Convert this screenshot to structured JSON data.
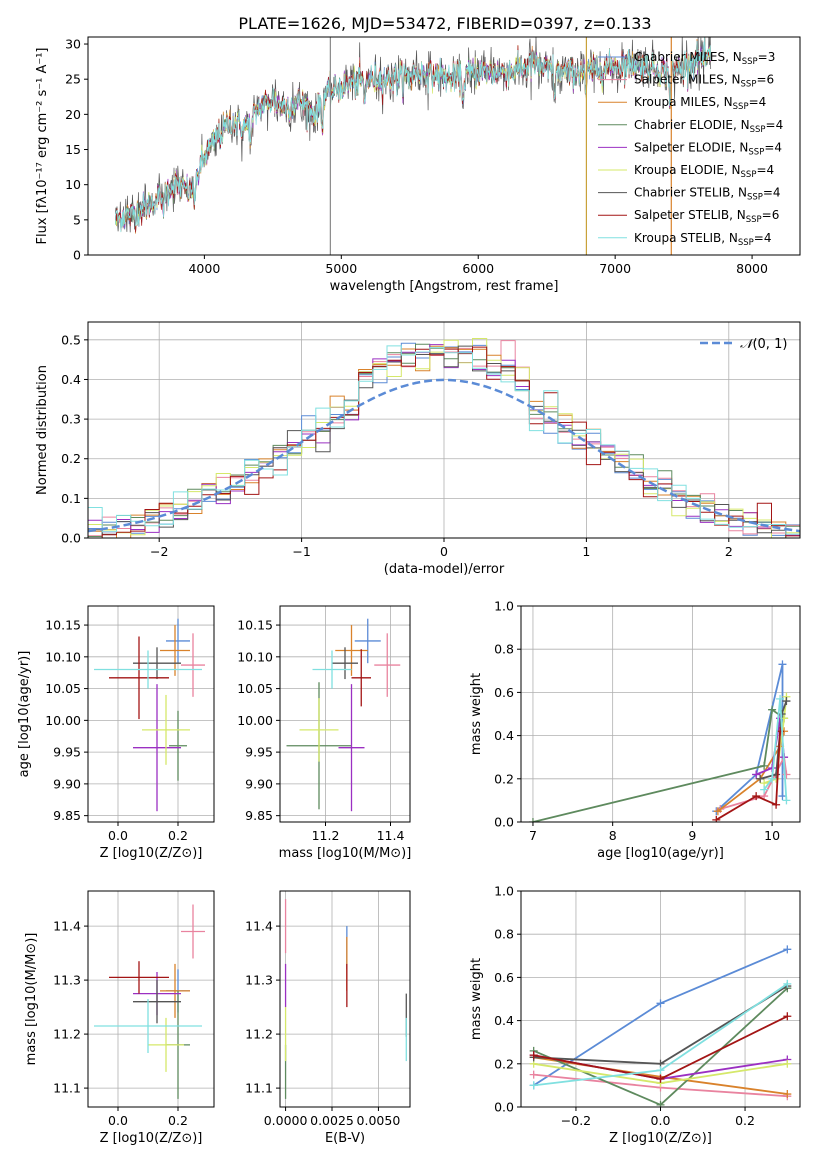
{
  "figure_title": "PLATE=1626, MJD=53472, FIBERID=0397, z=0.133",
  "legend_series": [
    {
      "label": "Chabrier MILES, N",
      "sub": "SSP",
      "tail": "=3",
      "color": "#5b8bd6"
    },
    {
      "label": "Salpeter MILES, N",
      "sub": "SSP",
      "tail": "=6",
      "color": "#e9839f"
    },
    {
      "label": "Kroupa MILES, N",
      "sub": "SSP",
      "tail": "=4",
      "color": "#d9822b"
    },
    {
      "label": "Chabrier ELODIE, N",
      "sub": "SSP",
      "tail": "=4",
      "color": "#5e8a5e"
    },
    {
      "label": "Salpeter ELODIE, N",
      "sub": "SSP",
      "tail": "=4",
      "color": "#9b30c2"
    },
    {
      "label": "Kroupa ELODIE, N",
      "sub": "SSP",
      "tail": "=4",
      "color": "#d5e86a"
    },
    {
      "label": "Chabrier STELIB, N",
      "sub": "SSP",
      "tail": "=4",
      "color": "#555555"
    },
    {
      "label": "Salpeter STELIB, N",
      "sub": "SSP",
      "tail": "=6",
      "color": "#a31515"
    },
    {
      "label": "Kroupa STELIB, N",
      "sub": "SSP",
      "tail": "=4",
      "color": "#80e0e0"
    }
  ],
  "chart_data": [
    {
      "type": "line",
      "id": "spectrum",
      "xlabel": "wavelength [Angstrom, rest frame]",
      "ylabel": "Flux [fλ10⁻¹⁷ erg cm⁻² s⁻¹ A⁻¹]",
      "xlim": [
        3150,
        8350
      ],
      "ylim": [
        0,
        31
      ],
      "xticks": [
        4000,
        5000,
        6000,
        7000,
        8000
      ],
      "yticks": [
        0,
        5,
        10,
        15,
        20,
        25,
        30
      ],
      "envelope_x": [
        3350,
        3400,
        3500,
        3600,
        3700,
        3800,
        3900,
        4000,
        4100,
        4200,
        4300,
        4400,
        4500,
        4600,
        4700,
        4800,
        4900,
        5000,
        5200,
        5400,
        5600,
        5800,
        6000,
        6200,
        6400,
        6600,
        6800,
        7000,
        7200,
        7400,
        7600,
        7700
      ],
      "envelope_y": [
        5,
        5.5,
        6,
        7,
        9,
        10,
        9,
        14,
        17,
        19,
        18,
        21,
        22,
        21,
        22,
        20,
        23,
        24,
        25,
        25,
        26,
        25,
        26,
        26,
        27,
        26,
        26,
        27,
        27,
        26,
        28,
        28
      ],
      "dips": [
        3700,
        3930,
        4340,
        4860,
        5170,
        5890,
        6560,
        6785,
        7400
      ],
      "vertical_lines_x": [
        4920,
        6790,
        7410
      ]
    },
    {
      "type": "step",
      "id": "residuals",
      "xlabel": "(data-model)/error",
      "ylabel": "Normed distribution",
      "xlim": [
        -2.5,
        2.5
      ],
      "ylim": [
        0,
        0.545
      ],
      "xticks": [
        -2,
        -1,
        0,
        1,
        2
      ],
      "yticks": [
        0.0,
        0.1,
        0.2,
        0.3,
        0.4,
        0.5
      ],
      "grid": true,
      "reference_curve": "N(0,1)",
      "legend_position": "upper right",
      "bin_width": 0.1
    },
    {
      "type": "scatter",
      "id": "age_vs_Z",
      "xlabel": "Z [log10(Z/Z⊙)]",
      "ylabel": "age  [log10(age/yr)]",
      "xlim": [
        -0.1,
        0.32
      ],
      "ylim": [
        9.84,
        10.18
      ],
      "xticks": [
        0.0,
        0.2
      ],
      "yticks": [
        9.85,
        9.9,
        9.95,
        10.0,
        10.05,
        10.1,
        10.15
      ],
      "points": [
        {
          "x": 0.2,
          "y": 10.125,
          "xerr": 0.04,
          "yerr": 0.035
        },
        {
          "x": 0.25,
          "y": 10.087,
          "xerr": 0.04,
          "yerr": 0.05
        },
        {
          "x": 0.19,
          "y": 10.11,
          "xerr": 0.05,
          "yerr": 0.04
        },
        {
          "x": 0.2,
          "y": 9.96,
          "xerr": 0.03,
          "yerr": 0.055
        },
        {
          "x": 0.13,
          "y": 9.957,
          "xerr": 0.08,
          "yerr": 0.1
        },
        {
          "x": 0.16,
          "y": 9.985,
          "xerr": 0.08,
          "yerr": 0.055
        },
        {
          "x": 0.13,
          "y": 10.09,
          "xerr": 0.08,
          "yerr": 0.025
        },
        {
          "x": 0.07,
          "y": 10.067,
          "xerr": 0.1,
          "yerr": 0.065
        },
        {
          "x": 0.1,
          "y": 10.08,
          "xerr": 0.18,
          "yerr": 0.03
        }
      ]
    },
    {
      "type": "scatter",
      "id": "age_vs_mass",
      "xlabel": "mass [log10(M/M⊙)]",
      "ylabel": "",
      "xlim": [
        11.06,
        11.46
      ],
      "ylim": [
        9.84,
        10.18
      ],
      "xticks": [
        11.2,
        11.4
      ],
      "yticks": [
        9.85,
        9.9,
        9.95,
        10.0,
        10.05,
        10.1,
        10.15
      ],
      "points": [
        {
          "x": 11.33,
          "y": 10.125,
          "xerr": 0.04,
          "yerr": 0.035
        },
        {
          "x": 11.39,
          "y": 10.087,
          "xerr": 0.04,
          "yerr": 0.05
        },
        {
          "x": 11.28,
          "y": 10.11,
          "xerr": 0.05,
          "yerr": 0.04
        },
        {
          "x": 11.18,
          "y": 9.96,
          "xerr": 0.1,
          "yerr": 0.1
        },
        {
          "x": 11.28,
          "y": 9.957,
          "xerr": 0.04,
          "yerr": 0.1
        },
        {
          "x": 11.18,
          "y": 9.985,
          "xerr": 0.06,
          "yerr": 0.05
        },
        {
          "x": 11.26,
          "y": 10.09,
          "xerr": 0.04,
          "yerr": 0.025
        },
        {
          "x": 11.31,
          "y": 10.067,
          "xerr": 0.03,
          "yerr": 0.045
        },
        {
          "x": 11.22,
          "y": 10.08,
          "xerr": 0.06,
          "yerr": 0.03
        }
      ]
    },
    {
      "type": "line",
      "id": "massweight_vs_age",
      "xlabel": "age  [log10(age/yr)]",
      "ylabel": "mass weight",
      "xlim": [
        6.85,
        10.35
      ],
      "ylim": [
        0,
        1
      ],
      "xticks": [
        7,
        8,
        9,
        10
      ],
      "yticks": [
        0.0,
        0.2,
        0.4,
        0.6,
        0.8,
        1.0
      ],
      "series": [
        {
          "x": [
            9.3,
            9.8,
            10.13,
            10.13
          ],
          "y": [
            0.05,
            0.22,
            0.73,
            0.12
          ]
        },
        {
          "x": [
            9.35,
            9.9,
            10.15,
            10.18
          ],
          "y": [
            0.06,
            0.12,
            0.3,
            0.22
          ]
        },
        {
          "x": [
            9.32,
            9.85,
            10.1,
            10.15
          ],
          "y": [
            0.05,
            0.2,
            0.35,
            0.42
          ]
        },
        {
          "x": [
            7.0,
            9.9,
            10.0,
            10.15
          ],
          "y": [
            0.0,
            0.26,
            0.52,
            0.48
          ]
        },
        {
          "x": [
            9.8,
            10.0,
            10.1,
            10.15
          ],
          "y": [
            0.22,
            0.25,
            0.48,
            0.3
          ]
        },
        {
          "x": [
            9.9,
            10.05,
            10.15,
            10.18
          ],
          "y": [
            0.18,
            0.2,
            0.48,
            0.58
          ]
        },
        {
          "x": [
            9.85,
            10.05,
            10.12,
            10.18
          ],
          "y": [
            0.2,
            0.22,
            0.5,
            0.56
          ]
        },
        {
          "x": [
            9.3,
            9.8,
            10.05,
            10.1
          ],
          "y": [
            0.01,
            0.12,
            0.08,
            0.42
          ]
        },
        {
          "x": [
            9.9,
            10.0,
            10.1,
            10.18
          ],
          "y": [
            0.15,
            0.2,
            0.57,
            0.1
          ]
        }
      ]
    },
    {
      "type": "scatter",
      "id": "mass_vs_Z",
      "xlabel": "Z [log10(Z/Z⊙)]",
      "ylabel": "mass [log10(M/M⊙)]",
      "xlim": [
        -0.1,
        0.32
      ],
      "ylim": [
        11.065,
        11.465
      ],
      "xticks": [
        0.0,
        0.2
      ],
      "yticks": [
        11.1,
        11.2,
        11.3,
        11.4
      ],
      "points": [
        {
          "x": 0.2,
          "y": 11.28,
          "xerr": 0.04,
          "yerr": 0.04
        },
        {
          "x": 0.25,
          "y": 11.39,
          "xerr": 0.04,
          "yerr": 0.05
        },
        {
          "x": 0.19,
          "y": 11.28,
          "xerr": 0.05,
          "yerr": 0.05
        },
        {
          "x": 0.2,
          "y": 11.18,
          "xerr": 0.04,
          "yerr": 0.1
        },
        {
          "x": 0.13,
          "y": 11.275,
          "xerr": 0.08,
          "yerr": 0.04
        },
        {
          "x": 0.16,
          "y": 11.18,
          "xerr": 0.06,
          "yerr": 0.05
        },
        {
          "x": 0.13,
          "y": 11.26,
          "xerr": 0.08,
          "yerr": 0.04
        },
        {
          "x": 0.07,
          "y": 11.305,
          "xerr": 0.1,
          "yerr": 0.03
        },
        {
          "x": 0.1,
          "y": 11.215,
          "xerr": 0.18,
          "yerr": 0.05
        }
      ]
    },
    {
      "type": "scatter",
      "id": "mass_vs_EBV",
      "xlabel": "E(B-V)",
      "ylabel": "",
      "xlim": [
        -0.0003,
        0.0067
      ],
      "ylim": [
        11.065,
        11.465
      ],
      "xtick_values": [
        0.0,
        0.0025,
        0.005
      ],
      "xtick_labels": [
        "0.0000",
        "0.0025",
        "0.0050"
      ],
      "yticks": [
        11.1,
        11.2,
        11.3,
        11.4
      ],
      "points": [
        {
          "x": 0.0033,
          "y": 11.36,
          "yerr": 0.04
        },
        {
          "x": 0.0,
          "y": 11.4,
          "yerr": 0.05
        },
        {
          "x": 0.0033,
          "y": 11.33,
          "yerr": 0.05
        },
        {
          "x": 0.0,
          "y": 11.13,
          "yerr": 0.05
        },
        {
          "x": 0.0,
          "y": 11.29,
          "yerr": 0.04
        },
        {
          "x": 0.0,
          "y": 11.2,
          "yerr": 0.05
        },
        {
          "x": 0.0065,
          "y": 11.235,
          "yerr": 0.04
        },
        {
          "x": 0.0033,
          "y": 11.29,
          "yerr": 0.04
        },
        {
          "x": 0.0065,
          "y": 11.19,
          "yerr": 0.04
        }
      ]
    },
    {
      "type": "line",
      "id": "massweight_vs_Z",
      "xlabel": "Z [log10(Z/Z⊙)]",
      "ylabel": "mass weight",
      "xlim": [
        -0.33,
        0.33
      ],
      "ylim": [
        0,
        1
      ],
      "xticks": [
        -0.2,
        0.0,
        0.2
      ],
      "yticks": [
        0.0,
        0.2,
        0.4,
        0.6,
        0.8,
        1.0
      ],
      "series": [
        {
          "x": [
            -0.3,
            0.0,
            0.3
          ],
          "y": [
            0.1,
            0.48,
            0.73
          ]
        },
        {
          "x": [
            -0.3,
            0.0,
            0.3
          ],
          "y": [
            0.15,
            0.09,
            0.05
          ]
        },
        {
          "x": [
            -0.3,
            0.0,
            0.3
          ],
          "y": [
            0.23,
            0.14,
            0.06
          ]
        },
        {
          "x": [
            -0.3,
            0.0,
            0.3
          ],
          "y": [
            0.26,
            0.01,
            0.55
          ]
        },
        {
          "x": [
            -0.3,
            0.0,
            0.3
          ],
          "y": [
            0.24,
            0.13,
            0.22
          ]
        },
        {
          "x": [
            -0.3,
            0.0,
            0.3
          ],
          "y": [
            0.2,
            0.11,
            0.2
          ]
        },
        {
          "x": [
            -0.3,
            0.0,
            0.3
          ],
          "y": [
            0.23,
            0.2,
            0.56
          ]
        },
        {
          "x": [
            -0.3,
            0.0,
            0.3
          ],
          "y": [
            0.24,
            0.13,
            0.42
          ]
        },
        {
          "x": [
            -0.3,
            0.0,
            0.3
          ],
          "y": [
            0.1,
            0.17,
            0.57
          ]
        }
      ]
    }
  ]
}
